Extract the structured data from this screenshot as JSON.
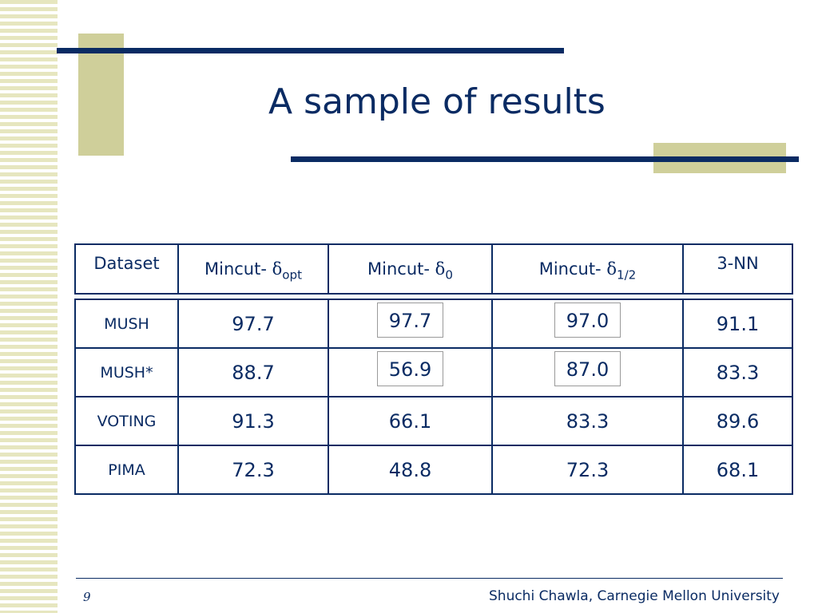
{
  "slide": {
    "title": "A sample of results",
    "page_number": "9",
    "footer": "Shuchi Chawla, Carnegie Mellon University"
  },
  "table": {
    "headers": {
      "dataset": "Dataset",
      "col1_prefix": "Mincut- ",
      "col1_symbol": "δ",
      "col1_sub": "opt",
      "col2_prefix": "Mincut- ",
      "col2_symbol": "δ",
      "col2_sub": "0",
      "col3_prefix": "Mincut- ",
      "col3_symbol": "δ",
      "col3_sub": "1/2",
      "col4": "3-NN"
    },
    "rows": [
      {
        "name": "MUSH",
        "values": [
          "97.7",
          "97.7",
          "97.0",
          "91.1"
        ]
      },
      {
        "name": "MUSH*",
        "values": [
          "88.7",
          "56.9",
          "87.0",
          "83.3"
        ]
      },
      {
        "name": "VOTING",
        "values": [
          "91.3",
          "66.1",
          "83.3",
          "89.6"
        ]
      },
      {
        "name": "PIMA",
        "values": [
          "72.3",
          "48.8",
          "72.3",
          "68.1"
        ]
      }
    ]
  }
}
